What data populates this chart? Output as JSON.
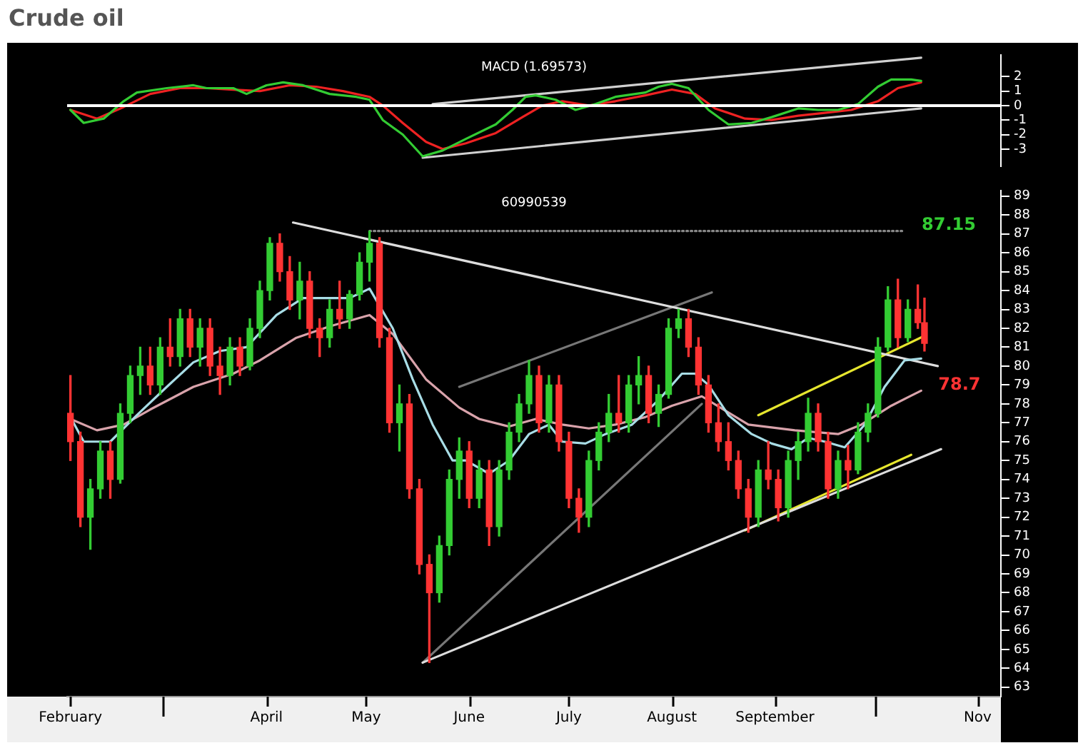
{
  "chart_data": [
    {
      "type": "line",
      "title": "Crude oil",
      "subtitle": "MACD (1.69573)",
      "xlim": [
        "--01-31",
        "--11-08"
      ],
      "ylim": [
        -4.2,
        3.5
      ],
      "yticks": [
        -3,
        -2,
        -1,
        0,
        1,
        2
      ],
      "tick_labels": "y",
      "ref_lines": [
        {
          "axis": "y",
          "value": 0,
          "color": "#ffffff"
        }
      ],
      "series": [
        {
          "color": "#33cc33",
          "x": [
            "--02-01",
            "--02-05",
            "--02-11",
            "--02-17",
            "--02-21",
            "--03-02",
            "--03-10",
            "--03-14",
            "--03-22",
            "--03-26",
            "--04-01",
            "--04-06",
            "--04-12",
            "--04-20",
            "--04-28",
            "--05-02",
            "--05-06",
            "--05-12",
            "--05-18",
            "--05-24",
            "--05-31",
            "--06-09",
            "--06-14",
            "--06-18",
            "--06-21",
            "--06-27",
            "--07-03",
            "--07-09",
            "--07-15",
            "--07-24",
            "--07-28",
            "--08-01",
            "--08-06",
            "--08-12",
            "--08-18",
            "--08-25",
            "--08-31",
            "--09-08",
            "--09-14",
            "--09-20",
            "--09-26",
            "--10-02",
            "--10-06",
            "--10-12",
            "--10-15"
          ],
          "values": [
            -0.3,
            -1.2,
            -0.9,
            0.3,
            0.9,
            1.2,
            1.4,
            1.2,
            1.2,
            0.8,
            1.4,
            1.6,
            1.4,
            0.8,
            0.6,
            0.4,
            -1.0,
            -2.0,
            -3.5,
            -3.1,
            -2.3,
            -1.3,
            -0.3,
            0.6,
            0.7,
            0.4,
            -0.3,
            0.1,
            0.6,
            0.9,
            1.3,
            1.5,
            1.2,
            -0.3,
            -1.3,
            -1.2,
            -0.8,
            -0.2,
            -0.3,
            -0.3,
            0.1,
            1.3,
            1.8,
            1.8,
            1.7
          ]
        },
        {
          "color": "#ee2222",
          "x": [
            "--02-01",
            "--02-09",
            "--02-17",
            "--02-25",
            "--03-06",
            "--03-14",
            "--03-22",
            "--03-30",
            "--04-08",
            "--04-16",
            "--04-24",
            "--05-02",
            "--05-06",
            "--05-12",
            "--05-19",
            "--05-24",
            "--05-31",
            "--06-09",
            "--06-17",
            "--06-23",
            "--06-29",
            "--07-07",
            "--07-15",
            "--07-24",
            "--08-01",
            "--08-08",
            "--08-14",
            "--08-23",
            "--08-31",
            "--09-08",
            "--09-16",
            "--09-24",
            "--10-02",
            "--10-08",
            "--10-15"
          ],
          "values": [
            -0.3,
            -0.9,
            -0.1,
            0.8,
            1.2,
            1.2,
            1.1,
            1.0,
            1.4,
            1.3,
            1.0,
            0.6,
            0.0,
            -1.2,
            -2.5,
            -3.0,
            -2.6,
            -1.9,
            -0.8,
            0.0,
            0.3,
            0.0,
            0.3,
            0.7,
            1.1,
            0.8,
            -0.2,
            -0.9,
            -1.0,
            -0.7,
            -0.5,
            -0.3,
            0.3,
            1.2,
            1.6
          ]
        },
        {
          "color": "#d0d0d0",
          "x": [
            "--05-21",
            "--10-15"
          ],
          "values": [
            0.1,
            3.3
          ]
        },
        {
          "color": "#d0d0d0",
          "x": [
            "--05-18",
            "--10-15"
          ],
          "values": [
            -3.6,
            -0.2
          ]
        }
      ]
    },
    {
      "type": "candlestick",
      "xlim": [
        "--01-31",
        "--11-08"
      ],
      "ylim": [
        62.5,
        89.3
      ],
      "yticks": [
        63,
        64,
        65,
        66,
        67,
        68,
        69,
        70,
        71,
        72,
        73,
        74,
        75,
        76,
        77,
        78,
        79,
        80,
        81,
        82,
        83,
        84,
        85,
        86,
        87,
        88,
        89
      ],
      "xticks": [
        {
          "value": "--02-01",
          "label": "February"
        },
        {
          "value": "--03-01",
          "label": null
        },
        {
          "value": "--04-01",
          "label": "April"
        },
        {
          "value": "--05-01",
          "label": "May"
        },
        {
          "value": "--06-01",
          "label": "June"
        },
        {
          "value": "--07-01",
          "label": "July"
        },
        {
          "value": "--08-01",
          "label": "August"
        },
        {
          "value": "--09-01",
          "label": "September"
        },
        {
          "value": "--10-01",
          "label": null
        },
        {
          "value": "--11-01",
          "label": "Nov"
        }
      ],
      "annotations": [
        "60990539",
        {
          "text": "87.15",
          "x": "--10-10",
          "y": 87.15
        },
        {
          "text": "78.7",
          "x": "--10-15",
          "y": 78.7
        }
      ],
      "x": [
        "--02-01",
        "--02-04",
        "--02-07",
        "--02-10",
        "--02-13",
        "--02-16",
        "--02-19",
        "--02-22",
        "--02-25",
        "--02-28",
        "--03-03",
        "--03-06",
        "--03-09",
        "--03-12",
        "--03-15",
        "--03-18",
        "--03-21",
        "--03-24",
        "--03-27",
        "--03-30",
        "--04-02",
        "--04-05",
        "--04-08",
        "--04-11",
        "--04-14",
        "--04-17",
        "--04-20",
        "--04-23",
        "--04-26",
        "--04-29",
        "--05-02",
        "--05-05",
        "--05-08",
        "--05-11",
        "--05-14",
        "--05-17",
        "--05-20",
        "--05-23",
        "--05-26",
        "--05-29",
        "--06-01",
        "--06-04",
        "--06-07",
        "--06-10",
        "--06-13",
        "--06-16",
        "--06-19",
        "--06-22",
        "--06-25",
        "--06-28",
        "--07-01",
        "--07-04",
        "--07-07",
        "--07-10",
        "--07-13",
        "--07-16",
        "--07-19",
        "--07-22",
        "--07-25",
        "--07-28",
        "--07-31",
        "--08-03",
        "--08-06",
        "--08-09",
        "--08-12",
        "--08-15",
        "--08-18",
        "--08-21",
        "--08-24",
        "--08-27",
        "--08-30",
        "--09-02",
        "--09-05",
        "--09-08",
        "--09-11",
        "--09-14",
        "--09-17",
        "--09-20",
        "--09-23",
        "--09-26",
        "--09-29",
        "--10-02",
        "--10-05",
        "--10-08",
        "--10-11",
        "--10-14",
        "--10-16"
      ],
      "ohlc": [
        [
          77.5,
          79.5,
          75,
          76
        ],
        [
          76,
          76.5,
          71.5,
          72
        ],
        [
          72,
          74,
          70.3,
          73.5
        ],
        [
          73.5,
          76,
          73,
          75.5
        ],
        [
          75.5,
          76,
          73,
          74
        ],
        [
          74,
          78,
          73.8,
          77.5
        ],
        [
          77.5,
          80,
          77,
          79.5
        ],
        [
          79.5,
          81,
          78.5,
          80
        ],
        [
          80,
          81,
          78.5,
          79
        ],
        [
          79,
          81.5,
          78.5,
          81
        ],
        [
          81,
          82.5,
          80,
          80.5
        ],
        [
          80.5,
          83,
          80,
          82.5
        ],
        [
          82.5,
          83,
          80.5,
          81
        ],
        [
          81,
          82.5,
          80,
          82
        ],
        [
          82,
          82.5,
          79.5,
          80
        ],
        [
          80,
          81,
          78.5,
          79.5
        ],
        [
          79.5,
          81.5,
          79,
          81
        ],
        [
          81,
          81.5,
          79.5,
          80
        ],
        [
          80,
          82.5,
          79.8,
          82
        ],
        [
          82,
          84.5,
          81.5,
          84
        ],
        [
          84,
          86.8,
          83.5,
          86.5
        ],
        [
          86.5,
          87,
          84.5,
          85
        ],
        [
          85,
          85.8,
          83,
          83.5
        ],
        [
          83.5,
          85.5,
          82.5,
          84.5
        ],
        [
          84.5,
          85,
          81.5,
          82
        ],
        [
          82,
          82.5,
          80.5,
          81.5
        ],
        [
          81.5,
          83.5,
          81,
          83
        ],
        [
          83,
          84.5,
          82,
          82.5
        ],
        [
          82.5,
          84,
          82,
          83.8
        ],
        [
          83.8,
          86,
          83.5,
          85.5
        ],
        [
          85.5,
          87.15,
          84.5,
          86.5
        ],
        [
          86.5,
          86.8,
          81,
          81.5
        ],
        [
          81.5,
          82,
          76.5,
          77
        ],
        [
          77,
          79,
          75.5,
          78
        ],
        [
          78,
          78.5,
          73,
          73.5
        ],
        [
          73.5,
          74,
          69,
          69.5
        ],
        [
          69.5,
          70,
          64.3,
          68
        ],
        [
          68,
          71,
          67.5,
          70.5
        ],
        [
          70.5,
          74.5,
          70,
          74
        ],
        [
          74,
          76.2,
          73,
          75.5
        ],
        [
          75.5,
          76,
          72.5,
          73
        ],
        [
          73,
          75,
          72.5,
          74.5
        ],
        [
          74.5,
          75,
          70.5,
          71.5
        ],
        [
          71.5,
          75,
          71,
          74.5
        ],
        [
          74.5,
          77,
          74,
          76.5
        ],
        [
          76.5,
          78.5,
          76,
          78
        ],
        [
          78,
          80.3,
          77.5,
          79.5
        ],
        [
          79.5,
          80,
          76.5,
          77
        ],
        [
          77,
          79.5,
          76.5,
          79
        ],
        [
          79,
          79.5,
          75.5,
          76
        ],
        [
          76,
          76.5,
          72.5,
          73
        ],
        [
          73,
          73.5,
          71.2,
          72
        ],
        [
          72,
          75.5,
          71.5,
          75
        ],
        [
          75,
          77,
          74.5,
          76.5
        ],
        [
          76.5,
          78.5,
          76,
          77.5
        ],
        [
          77.5,
          79.5,
          76.5,
          77
        ],
        [
          77,
          79.5,
          76.5,
          79
        ],
        [
          79,
          80.5,
          78,
          79.5
        ],
        [
          79.5,
          80,
          77,
          77.5
        ],
        [
          77.5,
          79,
          76.8,
          78.5
        ],
        [
          78.5,
          82.5,
          78.3,
          82
        ],
        [
          82,
          83,
          81.5,
          82.5
        ],
        [
          82.5,
          83,
          80.5,
          81
        ],
        [
          81,
          81.5,
          78.5,
          79
        ],
        [
          79,
          79.5,
          76.5,
          77
        ],
        [
          77,
          78,
          75.5,
          76
        ],
        [
          76,
          77,
          74.5,
          75
        ],
        [
          75,
          75.5,
          73,
          73.5
        ],
        [
          73.5,
          74,
          71.2,
          72
        ],
        [
          72,
          75,
          71.5,
          74.5
        ],
        [
          74.5,
          76,
          73.5,
          74
        ],
        [
          74,
          74.5,
          71.8,
          72.5
        ],
        [
          72.5,
          75.5,
          72,
          75
        ],
        [
          75,
          76.5,
          74,
          76
        ],
        [
          76,
          78.3,
          75.5,
          77.5
        ],
        [
          77.5,
          78,
          75.5,
          76
        ],
        [
          76,
          76.5,
          73,
          73.5
        ],
        [
          73.5,
          75.5,
          73,
          75
        ],
        [
          75,
          75.8,
          73.5,
          74.5
        ],
        [
          74.5,
          77,
          74.3,
          76.5
        ],
        [
          76.5,
          78,
          76,
          77.5
        ],
        [
          77.5,
          81.5,
          77.3,
          81
        ],
        [
          81,
          84.2,
          80.8,
          83.5
        ],
        [
          83.5,
          84.6,
          81,
          81.5
        ],
        [
          81.5,
          83.5,
          81.3,
          83
        ],
        [
          83,
          84.3,
          82,
          82.3
        ],
        [
          82.3,
          83.6,
          80.8,
          81.2
        ]
      ],
      "colors": [
        "#ff3333",
        "#ff3333",
        "#33cc33",
        "#33cc33",
        "#ff3333",
        "#33cc33",
        "#33cc33",
        "#33cc33",
        "#ff3333",
        "#33cc33",
        "#ff3333",
        "#33cc33",
        "#ff3333",
        "#33cc33",
        "#ff3333",
        "#ff3333",
        "#33cc33",
        "#ff3333",
        "#33cc33",
        "#33cc33",
        "#33cc33",
        "#ff3333",
        "#ff3333",
        "#33cc33",
        "#ff3333",
        "#ff3333",
        "#33cc33",
        "#ff3333",
        "#33cc33",
        "#33cc33",
        "#33cc33",
        "#ff3333",
        "#ff3333",
        "#33cc33",
        "#ff3333",
        "#ff3333",
        "#ff3333",
        "#33cc33",
        "#33cc33",
        "#33cc33",
        "#ff3333",
        "#33cc33",
        "#ff3333",
        "#33cc33",
        "#33cc33",
        "#33cc33",
        "#33cc33",
        "#ff3333",
        "#33cc33",
        "#ff3333",
        "#ff3333",
        "#ff3333",
        "#33cc33",
        "#33cc33",
        "#33cc33",
        "#ff3333",
        "#33cc33",
        "#33cc33",
        "#ff3333",
        "#33cc33",
        "#33cc33",
        "#33cc33",
        "#ff3333",
        "#ff3333",
        "#ff3333",
        "#ff3333",
        "#ff3333",
        "#ff3333",
        "#ff3333",
        "#33cc33",
        "#ff3333",
        "#ff3333",
        "#33cc33",
        "#33cc33",
        "#33cc33",
        "#ff3333",
        "#ff3333",
        "#33cc33",
        "#ff3333",
        "#33cc33",
        "#33cc33",
        "#33cc33",
        "#33cc33",
        "#ff3333",
        "#33cc33",
        "#ff3333",
        "#ff3333"
      ],
      "series": [
        {
          "type": "line",
          "color": "#a8dde6",
          "x": [
            "--02-01",
            "--02-05",
            "--02-13",
            "--02-21",
            "--03-02",
            "--03-10",
            "--03-18",
            "--03-26",
            "--04-04",
            "--04-12",
            "--04-20",
            "--04-26",
            "--05-02",
            "--05-09",
            "--05-15",
            "--05-21",
            "--05-27",
            "--05-31",
            "--06-07",
            "--06-13",
            "--06-19",
            "--06-25",
            "--06-29",
            "--07-06",
            "--07-12",
            "--07-20",
            "--07-28",
            "--08-04",
            "--08-08",
            "--08-12",
            "--08-18",
            "--08-25",
            "--08-31",
            "--09-06",
            "--09-11",
            "--09-16",
            "--09-22",
            "--09-28",
            "--10-04",
            "--10-10",
            "--10-15"
          ],
          "values": [
            77.3,
            76.0,
            76.0,
            77.4,
            78.9,
            80.2,
            80.8,
            81.0,
            82.7,
            83.6,
            83.6,
            83.6,
            84.1,
            82.0,
            79.3,
            76.9,
            75.0,
            75.0,
            74.3,
            75.0,
            76.4,
            76.9,
            76.0,
            75.9,
            76.4,
            76.9,
            78.2,
            79.6,
            79.6,
            79.0,
            77.4,
            76.4,
            75.9,
            75.6,
            76.2,
            76.0,
            75.7,
            76.9,
            78.9,
            80.3,
            80.4
          ]
        },
        {
          "type": "line",
          "color": "#d9a3ab",
          "x": [
            "--02-01",
            "--02-09",
            "--02-17",
            "--02-25",
            "--03-10",
            "--03-22",
            "--03-30",
            "--04-10",
            "--04-20",
            "--05-02",
            "--05-09",
            "--05-19",
            "--05-29",
            "--06-04",
            "--06-13",
            "--06-21",
            "--06-29",
            "--07-07",
            "--07-15",
            "--07-24",
            "--08-01",
            "--08-10",
            "--08-24",
            "--09-07",
            "--09-20",
            "--09-27",
            "--10-06",
            "--10-15"
          ],
          "values": [
            77.2,
            76.6,
            76.9,
            77.7,
            78.9,
            79.6,
            80.3,
            81.5,
            82.1,
            82.7,
            81.7,
            79.3,
            77.8,
            77.2,
            76.8,
            77.2,
            76.9,
            76.7,
            76.9,
            77.3,
            77.9,
            78.4,
            76.9,
            76.6,
            76.4,
            76.9,
            77.9,
            78.7
          ]
        },
        {
          "type": "line",
          "color": "#dddddd",
          "x": [
            "--04-09",
            "--10-20"
          ],
          "values": [
            87.6,
            80.0
          ]
        },
        {
          "type": "line",
          "color": "#dddddd",
          "x": [
            "--05-18",
            "--10-21"
          ],
          "values": [
            64.3,
            75.6
          ]
        },
        {
          "type": "line",
          "color": "#777777",
          "x": [
            "--05-18",
            "--08-10"
          ],
          "values": [
            64.3,
            78.0
          ]
        },
        {
          "type": "line",
          "color": "#777777",
          "x": [
            "--05-29",
            "--08-13"
          ],
          "values": [
            78.9,
            83.9
          ]
        },
        {
          "type": "line",
          "color": "#888888",
          "line_style": "dotted",
          "x": [
            "--05-02",
            "--10-10"
          ],
          "values": [
            87.15,
            87.15
          ]
        },
        {
          "type": "line",
          "color": "#e6e62e",
          "x": [
            "--08-27",
            "--10-16"
          ],
          "values": [
            77.4,
            81.6
          ]
        },
        {
          "type": "line",
          "color": "#e6e62e",
          "x": [
            "--08-23",
            "--10-12"
          ],
          "values": [
            71.3,
            75.3
          ]
        }
      ]
    }
  ]
}
